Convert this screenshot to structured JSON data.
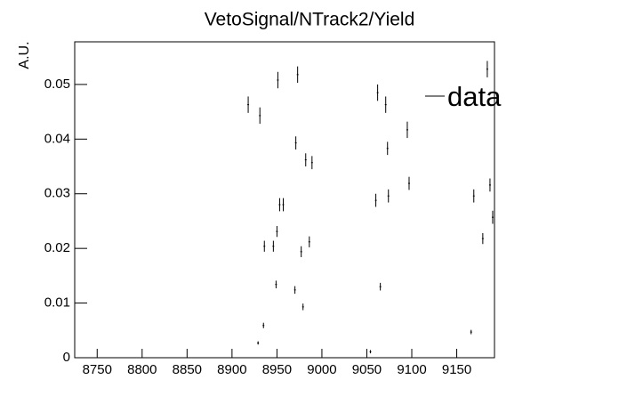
{
  "chart_data": {
    "type": "errorbar",
    "title": "VetoSignal/NTrack2/Yield",
    "y_label": "A.U.",
    "xlim": [
      8725,
      9192
    ],
    "ylim": [
      0,
      0.0578
    ],
    "xticks": [
      8750,
      8800,
      8850,
      8900,
      8950,
      9000,
      9050,
      9100,
      9150
    ],
    "yticks": [
      0,
      0.01,
      0.02,
      0.03,
      0.04,
      0.05
    ],
    "legend": "top-right",
    "series": [
      {
        "name": "data",
        "color": "#000000",
        "x": [
          8918,
          8931,
          8929,
          8935,
          8936,
          8946,
          8949,
          8950,
          8951,
          8953,
          8957,
          8970,
          8971,
          8973,
          8977,
          8979,
          8982,
          8986,
          8989,
          9054,
          9060,
          9062,
          9065,
          9071,
          9073,
          9074,
          9095,
          9097,
          9166,
          9169,
          9179,
          9184,
          9187,
          9190
        ],
        "values": [
          0.0463,
          0.0443,
          0.0027,
          0.0059,
          0.0204,
          0.0204,
          0.0134,
          0.0231,
          0.0508,
          0.028,
          0.028,
          0.0124,
          0.0393,
          0.0518,
          0.0194,
          0.0093,
          0.0362,
          0.0212,
          0.0357,
          0.0011,
          0.0288,
          0.0485,
          0.013,
          0.0463,
          0.0383,
          0.0296,
          0.0417,
          0.0319,
          0.0047,
          0.0296,
          0.0218,
          0.0528,
          0.0316,
          0.0257
        ],
        "errors": [
          0.0015,
          0.0015,
          0.0003,
          0.0005,
          0.001,
          0.001,
          0.0007,
          0.001,
          0.0015,
          0.0012,
          0.0012,
          0.0007,
          0.0012,
          0.0015,
          0.001,
          0.0006,
          0.0012,
          0.001,
          0.0012,
          0.0003,
          0.0012,
          0.0015,
          0.0007,
          0.0015,
          0.0012,
          0.0012,
          0.0015,
          0.0012,
          0.0004,
          0.0012,
          0.001,
          0.0015,
          0.0012,
          0.0012
        ]
      }
    ]
  }
}
